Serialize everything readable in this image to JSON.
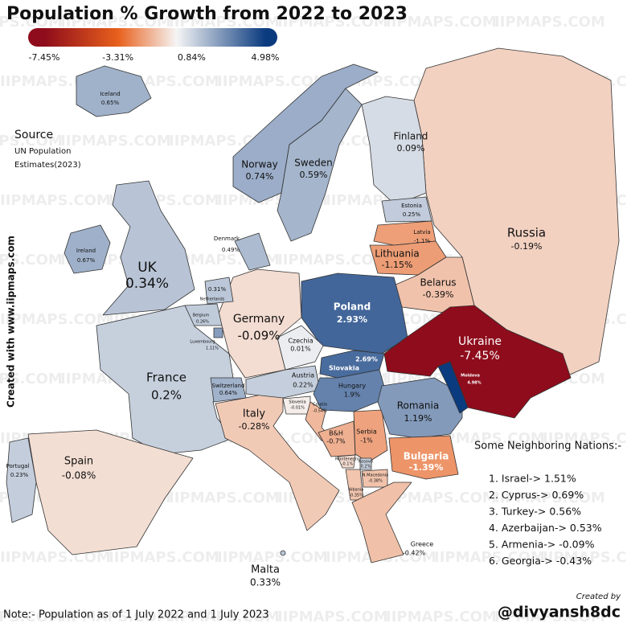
{
  "title": "Population % Growth from 2022 to 2023",
  "legend": {
    "ticks": [
      {
        "value": -7.45,
        "label": "-7.45%"
      },
      {
        "value": -3.31,
        "label": "-3.31%"
      },
      {
        "value": 0.84,
        "label": "0.84%"
      },
      {
        "value": 4.98,
        "label": "4.98%"
      }
    ],
    "colors": [
      "#8e0c1b",
      "#e8601c",
      "#f5f5f5",
      "#0b3b7f"
    ]
  },
  "watermark": "IIPMAPS.COM",
  "source": {
    "heading": "Source",
    "lines": [
      "UN Population",
      "Estimates(2023)"
    ]
  },
  "side_credit": "Created with www.iipmaps.com",
  "countries": [
    {
      "name": "Iceland",
      "value": 0.65,
      "label": "0.65%"
    },
    {
      "name": "Ireland",
      "value": 0.67,
      "label": "0.67%"
    },
    {
      "name": "UK",
      "value": 0.34,
      "label": "0.34%"
    },
    {
      "name": "Norway",
      "value": 0.74,
      "label": "0.74%"
    },
    {
      "name": "Sweden",
      "value": 0.59,
      "label": "0.59%"
    },
    {
      "name": "Finland",
      "value": 0.09,
      "label": "0.09%"
    },
    {
      "name": "Russia",
      "value": -0.19,
      "label": "-0.19%"
    },
    {
      "name": "Estonia",
      "value": 0.25,
      "label": "0.25%"
    },
    {
      "name": "Latvia",
      "value": -1.1,
      "label": "-1.1%"
    },
    {
      "name": "Lithuania",
      "value": -1.15,
      "label": "-1.15%"
    },
    {
      "name": "Belarus",
      "value": -0.39,
      "label": "-0.39%"
    },
    {
      "name": "Poland",
      "value": 2.93,
      "label": "2.93%"
    },
    {
      "name": "Germany",
      "value": -0.09,
      "label": "-0.09%"
    },
    {
      "name": "Denmark",
      "value": 0.49,
      "label": "0.49%"
    },
    {
      "name": "Netherlands",
      "value": 0.31,
      "label": "0.31%"
    },
    {
      "name": "Belgium",
      "value": 0.26,
      "label": "0.26%"
    },
    {
      "name": "Luxembourg",
      "value": 1.11,
      "label": "1.11%"
    },
    {
      "name": "France",
      "value": 0.2,
      "label": "0.2%"
    },
    {
      "name": "Spain",
      "value": -0.08,
      "label": "-0.08%"
    },
    {
      "name": "Portugal",
      "value": 0.23,
      "label": "0.23%"
    },
    {
      "name": "Switzerland",
      "value": 0.64,
      "label": "0.64%"
    },
    {
      "name": "Italy",
      "value": -0.28,
      "label": "-0.28%"
    },
    {
      "name": "Malta",
      "value": 0.33,
      "label": "0.33%"
    },
    {
      "name": "Czechia",
      "value": 0.01,
      "label": "0.01%"
    },
    {
      "name": "Austria",
      "value": 0.22,
      "label": "0.22%"
    },
    {
      "name": "Slovakia",
      "value": 2.69,
      "label": "2.69%"
    },
    {
      "name": "Hungary",
      "value": 1.9,
      "label": "1.9%"
    },
    {
      "name": "Slovenia",
      "value": -0.01,
      "label": "-0.01%"
    },
    {
      "name": "Croatia",
      "value": -0.54,
      "label": "-0.54%"
    },
    {
      "name": "B&H",
      "value": -0.7,
      "label": "-0.7%"
    },
    {
      "name": "Serbia",
      "value": -1,
      "label": "-1%"
    },
    {
      "name": "Montenegro",
      "value": -0.1,
      "label": "-0.1%"
    },
    {
      "name": "Kosovo",
      "value": 0.2,
      "label": "0.2%"
    },
    {
      "name": "N.Macedonia",
      "value": -0.38,
      "label": "-0.38%"
    },
    {
      "name": "Albania",
      "value": -0.35,
      "label": "-0.35%"
    },
    {
      "name": "Romania",
      "value": 1.19,
      "label": "1.19%"
    },
    {
      "name": "Moldova",
      "value": 4.98,
      "label": "4.98%"
    },
    {
      "name": "Ukraine",
      "value": -7.45,
      "label": "-7.45%"
    },
    {
      "name": "Bulgaria",
      "value": -1.39,
      "label": "-1.39%"
    },
    {
      "name": "Greece",
      "value": -0.42,
      "label": "-0.42%"
    }
  ],
  "neighbors": {
    "heading": "Some Neighboring Nations:-",
    "items": [
      "1. Israel-> 1.51%",
      "2. Cyprus-> 0.69%",
      "3. Turkey-> 0.56%",
      "4. Azerbaijan-> 0.53%",
      "5. Armenia-> -0.09%",
      "6. Georgia-> -0.43%"
    ]
  },
  "note": "Note:- Population as of 1 July 2022 and 1 July 2023",
  "credit": {
    "label": "Created by",
    "handle": "@divyansh8dc"
  }
}
